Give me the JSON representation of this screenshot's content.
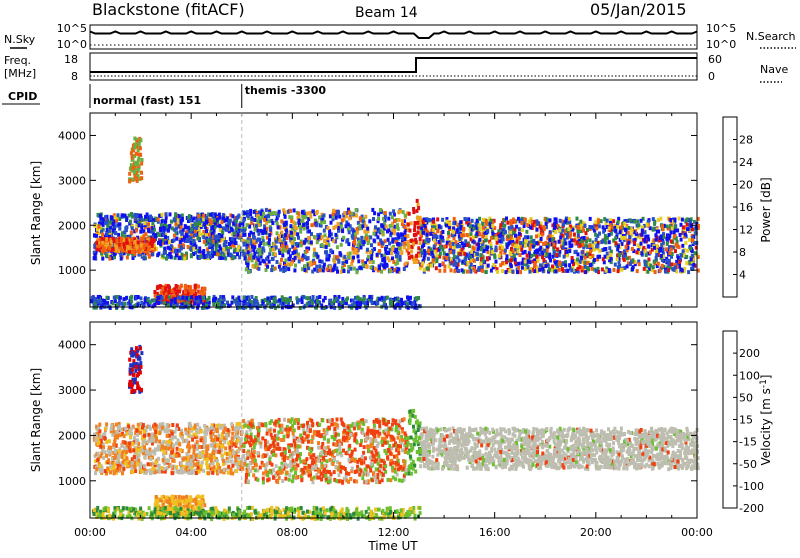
{
  "header": {
    "title": "Blackstone (fitACF)",
    "beam": "Beam 14",
    "date": "05/Jan/2015"
  },
  "top_panels": {
    "nsky_label": "N.Sky",
    "nsky_ticks": [
      "10^5",
      "10^0"
    ],
    "nsearch_label": "N.Search",
    "nsearch_ticks": [
      "10^5",
      "10^0"
    ],
    "freq_label_line1": "Freq.",
    "freq_label_line2": "[MHz]",
    "freq_ticks": [
      "18",
      "8"
    ],
    "nave_label": "Nave",
    "nave_ticks": [
      "60",
      "0"
    ],
    "cpid_label": "CPID",
    "cpid_segments": [
      {
        "name": "normal (fast) 151",
        "start_hour": 0
      },
      {
        "name": "themis -3300",
        "start_hour": 6
      }
    ]
  },
  "chart_data": [
    {
      "type": "heatmap",
      "panel": "power",
      "ylabel": "Slant Range [km]",
      "yticks": [
        "1000",
        "2000",
        "3000",
        "4000"
      ],
      "ylim": [
        180,
        4500
      ],
      "colorbar": {
        "label": "Power [dB]",
        "ticks": [
          "4",
          "8",
          "12",
          "16",
          "20",
          "24",
          "28"
        ],
        "range": [
          0,
          30
        ]
      }
    },
    {
      "type": "heatmap",
      "panel": "velocity",
      "ylabel": "Slant Range [km]",
      "yticks": [
        "1000",
        "2000",
        "3000",
        "4000"
      ],
      "ylim": [
        180,
        4500
      ],
      "colorbar": {
        "label": "Velocity [m s",
        "label_superscript": "-1",
        "label_close": "]",
        "ticks": [
          "200",
          "100",
          "50",
          "15",
          "-15",
          "-50",
          "-100",
          "-200"
        ]
      }
    }
  ],
  "x_axis": {
    "label": "Time UT",
    "ticks": [
      "00:00",
      "04:00",
      "08:00",
      "12:00",
      "16:00",
      "20:00",
      "00:00"
    ],
    "range_hours": [
      0,
      24
    ]
  },
  "colors": {
    "power_scale": [
      "#1010ee",
      "#2850c8",
      "#2f8a4a",
      "#6ab040",
      "#e8d020",
      "#f0a020",
      "#f06010",
      "#e01010"
    ],
    "velocity_scale": [
      "#2030c0",
      "#2a8a3a",
      "#6cc030",
      "#bdbdb0",
      "#f0c020",
      "#f08020",
      "#f04010",
      "#e00000"
    ]
  }
}
